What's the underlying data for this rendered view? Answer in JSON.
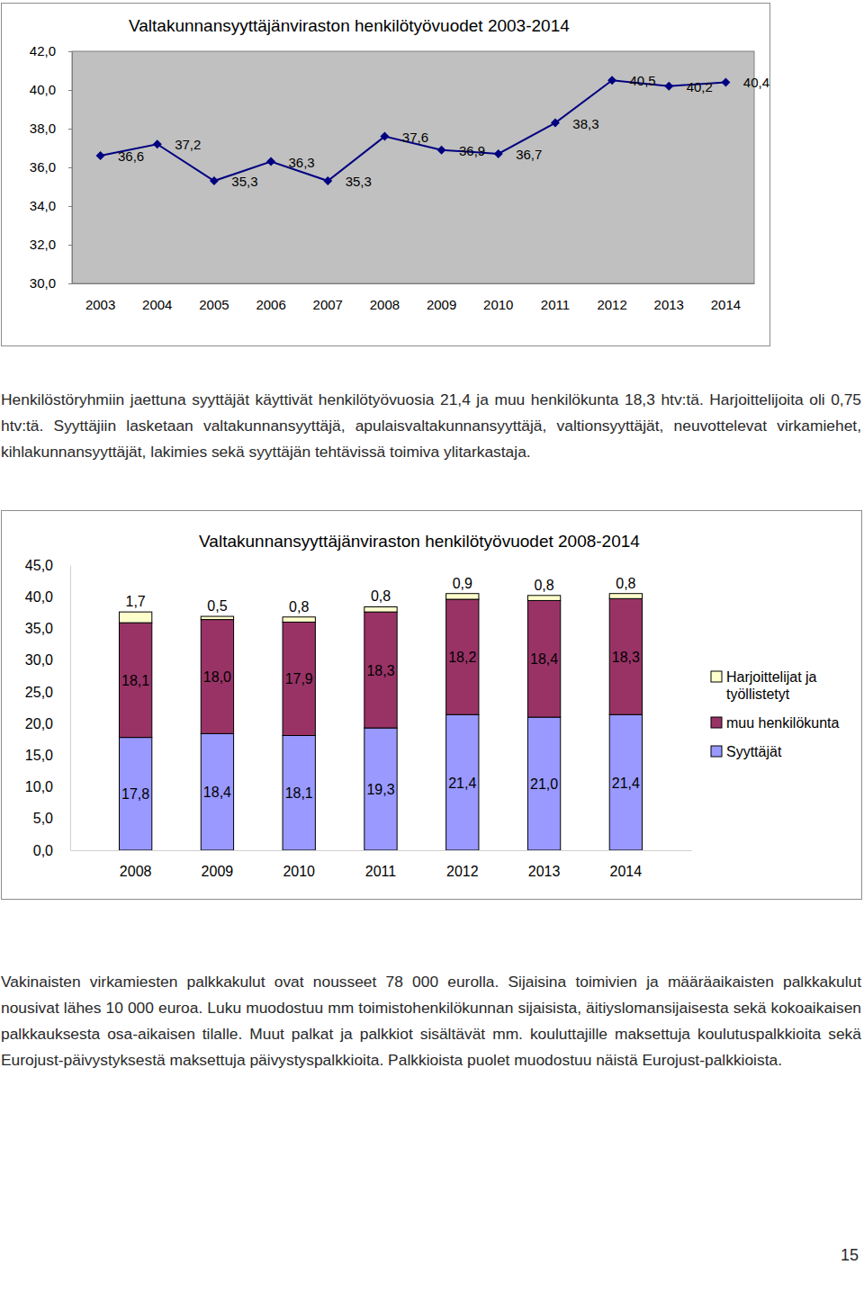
{
  "chart_data": [
    {
      "type": "line",
      "title": "Valtakunnansyyttäjänviraston henkilötyövuodet 2003-2014",
      "categories": [
        "2003",
        "2004",
        "2005",
        "2006",
        "2007",
        "2008",
        "2009",
        "2010",
        "2011",
        "2012",
        "2013",
        "2014"
      ],
      "values": [
        36.6,
        37.2,
        35.3,
        36.3,
        35.3,
        37.6,
        36.9,
        36.7,
        38.3,
        40.5,
        40.2,
        40.4
      ],
      "value_labels": [
        "36,6",
        "37,2",
        "35,3",
        "36,3",
        "35,3",
        "37,6",
        "36,9",
        "36,7",
        "38,3",
        "40,5",
        "40,2",
        "40,4"
      ],
      "color": "#000080",
      "marker": "diamond",
      "data_labels": true,
      "grid": false,
      "ylim": [
        30,
        42
      ],
      "yticks": [
        {
          "value": 30,
          "label": "30,0"
        },
        {
          "value": 32,
          "label": "32,0"
        },
        {
          "value": 34,
          "label": "34,0"
        },
        {
          "value": 36,
          "label": "36,0"
        },
        {
          "value": 38,
          "label": "38,0"
        },
        {
          "value": 40,
          "label": "40,0"
        },
        {
          "value": 42,
          "label": "42,0"
        }
      ]
    },
    {
      "type": "bar",
      "title": "Valtakunnansyyttäjänviraston henkilötyövuodet 2008-2014",
      "stacked": true,
      "data_labels": true,
      "grid": false,
      "legend": "right",
      "categories": [
        "2008",
        "2009",
        "2010",
        "2011",
        "2012",
        "2013",
        "2014"
      ],
      "series": [
        {
          "name": "Syyttäjät",
          "color": "#9999ff",
          "values": [
            17.8,
            18.4,
            18.1,
            19.3,
            21.4,
            21.0,
            21.4
          ],
          "value_labels": [
            "17,8",
            "18,4",
            "18,1",
            "19,3",
            "21,4",
            "21,0",
            "21,4"
          ]
        },
        {
          "name": "muu henkilökunta",
          "color": "#993366",
          "values": [
            18.1,
            18.0,
            17.9,
            18.3,
            18.2,
            18.4,
            18.3
          ],
          "value_labels": [
            "18,1",
            "18,0",
            "17,9",
            "18,3",
            "18,2",
            "18,4",
            "18,3"
          ]
        },
        {
          "name": "Harjoittelijat ja työllistetyt",
          "color": "#ffffcc",
          "values": [
            1.7,
            0.5,
            0.8,
            0.8,
            0.9,
            0.8,
            0.8
          ],
          "value_labels": [
            "1,7",
            "0,5",
            "0,8",
            "0,8",
            "0,9",
            "0,8",
            "0,8"
          ]
        }
      ],
      "ylim": [
        0,
        45
      ],
      "yticks": [
        {
          "value": 0,
          "label": "0,0"
        },
        {
          "value": 5,
          "label": "5,0"
        },
        {
          "value": 10,
          "label": "10,0"
        },
        {
          "value": 15,
          "label": "15,0"
        },
        {
          "value": 20,
          "label": "20,0"
        },
        {
          "value": 25,
          "label": "25,0"
        },
        {
          "value": 30,
          "label": "30,0"
        },
        {
          "value": 35,
          "label": "35,0"
        },
        {
          "value": 40,
          "label": "40,0"
        },
        {
          "value": 45,
          "label": "45,0"
        }
      ]
    }
  ],
  "paragraphs": [
    "Henkilöstöryhmiin jaettuna syyttäjät käyttivät henkilötyövuosia 21,4 ja muu henkilökunta 18,3 htv:tä. Harjoittelijoita oli 0,75 htv:tä. Syyttäjiin lasketaan valtakunnansyyttäjä, apulaisvaltakunnansyyttäjä, valtionsyyttäjät, neuvottelevat virkamiehet, kihlakunnansyyttäjät, lakimies sekä syyttäjän tehtävissä toimiva ylitarkastaja.",
    "Vakinaisten virkamiesten palkkakulut ovat nousseet 78 000 eurolla. Sijaisina toimivien ja määräaikaisten palkkakulut nousivat lähes 10 000 euroa. Luku muodostuu mm toimistohenkilökunnan sijaisista, äitiyslomansijaisesta sekä kokoaikaisen palkkauksesta osa-aikaisen tilalle. Muut palkat ja palkkiot sisältävät mm. kouluttajille maksettuja koulutuspalkkioita sekä Eurojust-päivystyksestä maksettuja päivystyspalkkioita. Palkkioista puolet muodostuu näistä Eurojust-palkkioista."
  ],
  "page_number": "15"
}
